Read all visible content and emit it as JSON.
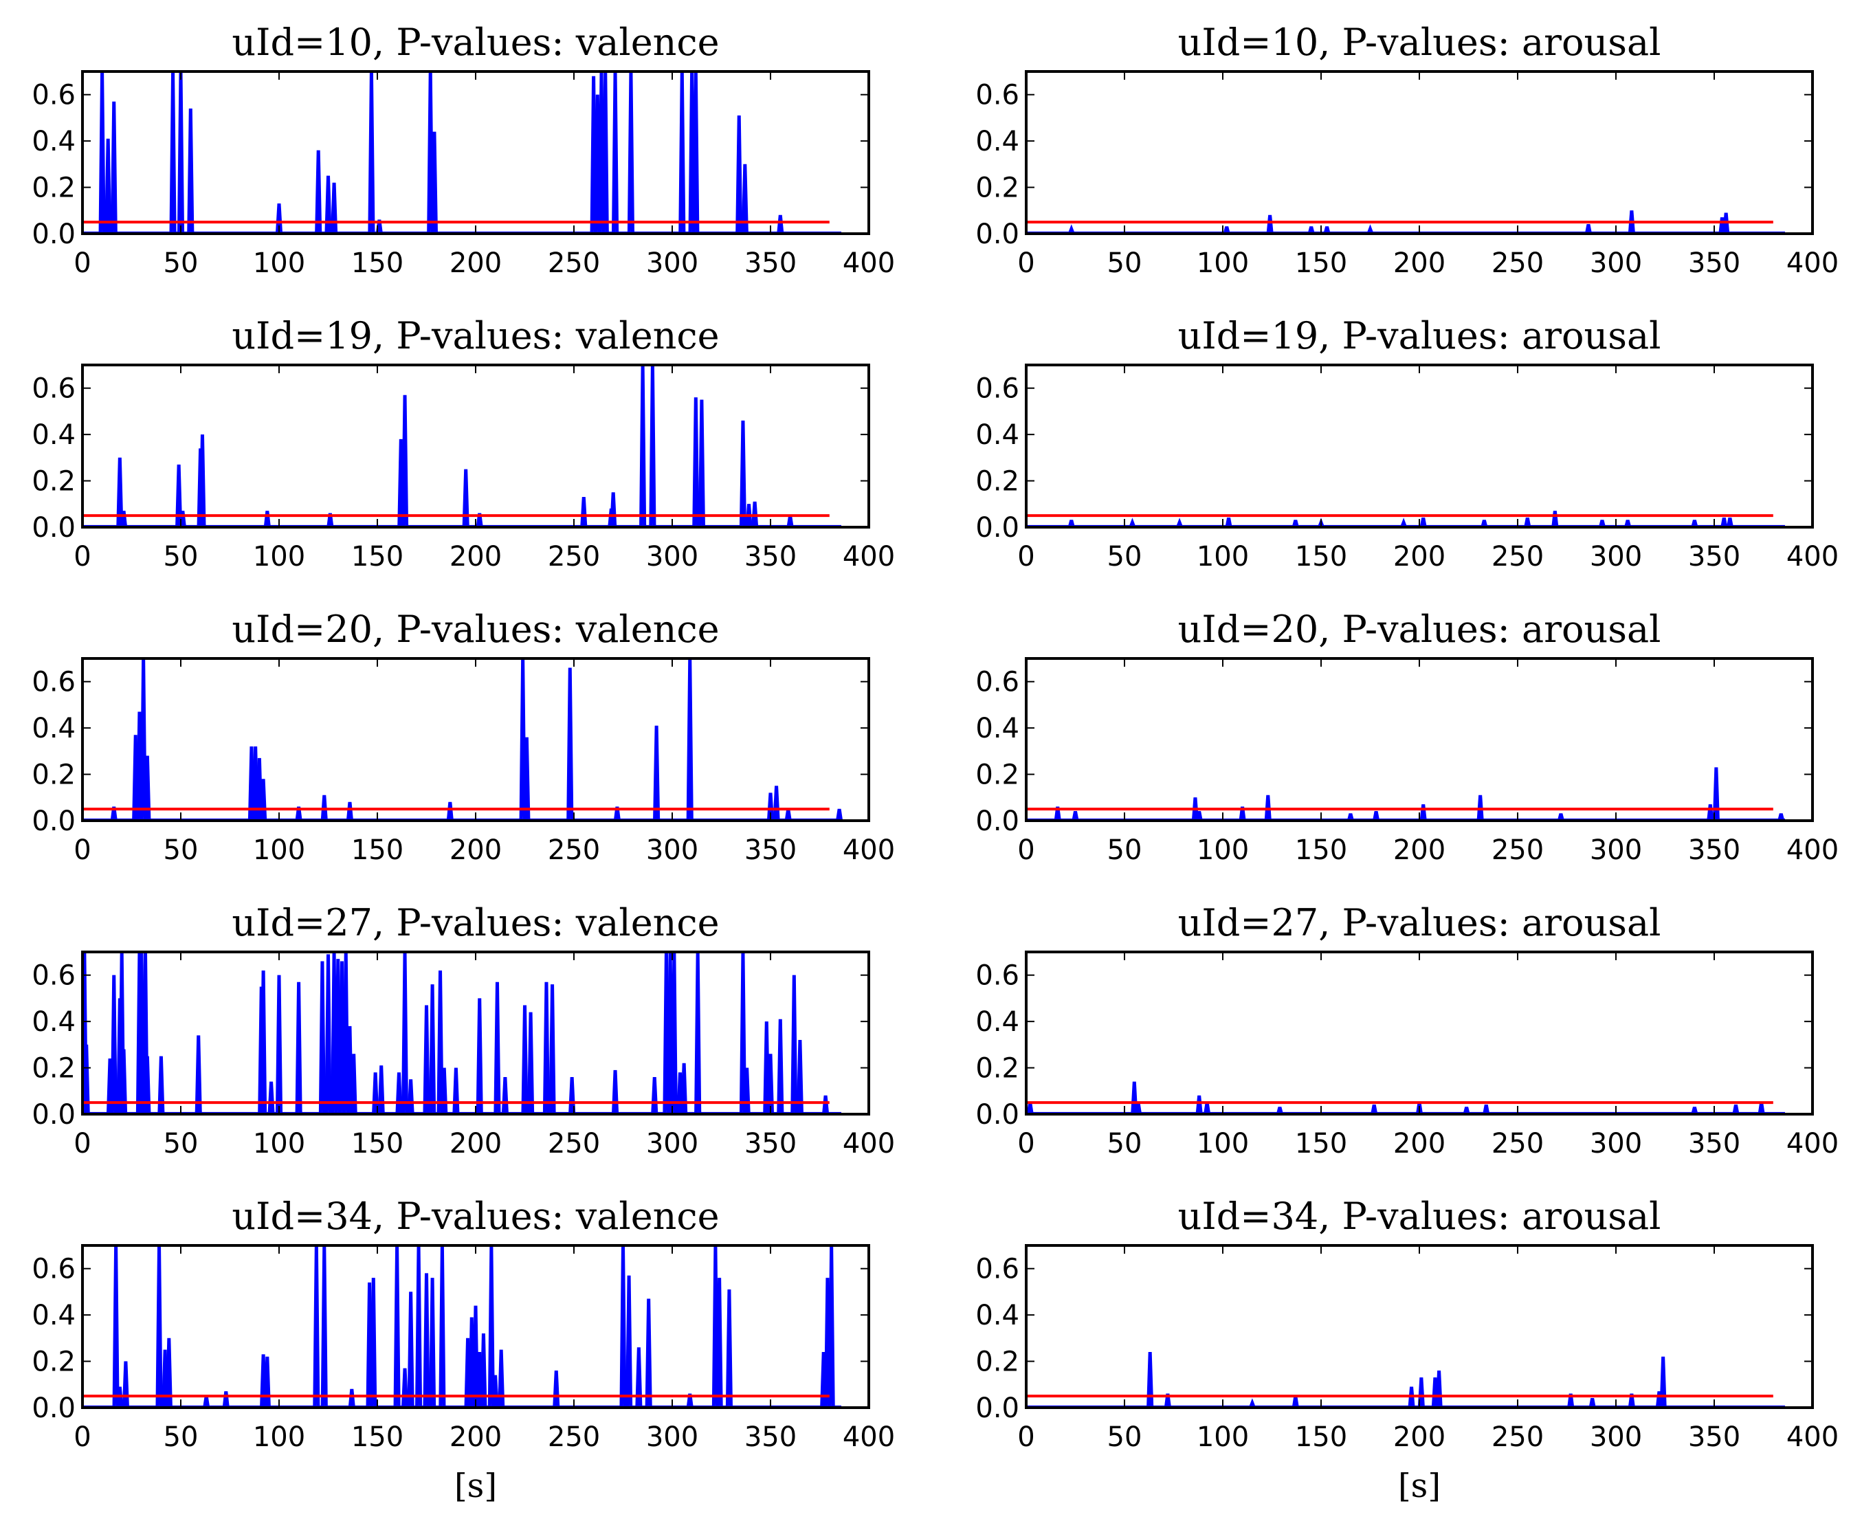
{
  "colors": {
    "pvalue": "#0000ff",
    "threshold": "#ff0000",
    "axes": "#000000"
  },
  "figure": {
    "bottom_labels": [
      "[s]",
      "[s]"
    ]
  },
  "chart_data": [
    {
      "type": "line",
      "title": "uId=10, P-values: valence",
      "xlabel": "",
      "ylabel": "",
      "xlim": [
        0,
        400
      ],
      "ylim": [
        0,
        0.7
      ],
      "xticks": [
        "0",
        "50",
        "100",
        "150",
        "200",
        "250",
        "300",
        "350",
        "400"
      ],
      "yticks": [
        "0.0",
        "0.2",
        "0.4",
        "0.6"
      ],
      "threshold": 0.05,
      "x_end": 380,
      "spikes": [
        [
          10,
          0.7
        ],
        [
          13,
          0.41
        ],
        [
          16,
          0.57
        ],
        [
          46,
          0.7
        ],
        [
          50,
          0.7
        ],
        [
          55,
          0.54
        ],
        [
          100,
          0.13
        ],
        [
          120,
          0.36
        ],
        [
          125,
          0.25
        ],
        [
          128,
          0.22
        ],
        [
          147,
          0.7
        ],
        [
          151,
          0.06
        ],
        [
          177,
          0.7
        ],
        [
          179,
          0.44
        ],
        [
          260,
          0.68
        ],
        [
          262,
          0.6
        ],
        [
          264,
          0.7
        ],
        [
          266,
          0.7
        ],
        [
          271,
          0.7
        ],
        [
          279,
          0.7
        ],
        [
          305,
          0.7
        ],
        [
          310,
          0.7
        ],
        [
          312,
          0.7
        ],
        [
          334,
          0.51
        ],
        [
          337,
          0.3
        ],
        [
          355,
          0.08
        ]
      ]
    },
    {
      "type": "line",
      "title": "uId=10, P-values: arousal",
      "xlabel": "",
      "ylabel": "",
      "xlim": [
        0,
        400
      ],
      "ylim": [
        0,
        0.7
      ],
      "xticks": [
        "0",
        "50",
        "100",
        "150",
        "200",
        "250",
        "300",
        "350",
        "400"
      ],
      "yticks": [
        "0.0",
        "0.2",
        "0.4",
        "0.6"
      ],
      "threshold": 0.05,
      "x_end": 380,
      "spikes": [
        [
          23,
          0.02
        ],
        [
          102,
          0.03
        ],
        [
          124,
          0.08
        ],
        [
          145,
          0.03
        ],
        [
          153,
          0.03
        ],
        [
          175,
          0.02
        ],
        [
          286,
          0.04
        ],
        [
          308,
          0.1
        ],
        [
          354,
          0.07
        ],
        [
          356,
          0.09
        ]
      ]
    },
    {
      "type": "line",
      "title": "uId=19, P-values: valence",
      "xlabel": "",
      "ylabel": "",
      "xlim": [
        0,
        400
      ],
      "ylim": [
        0,
        0.7
      ],
      "xticks": [
        "0",
        "50",
        "100",
        "150",
        "200",
        "250",
        "300",
        "350",
        "400"
      ],
      "yticks": [
        "0.0",
        "0.2",
        "0.4",
        "0.6"
      ],
      "threshold": 0.05,
      "x_end": 380,
      "spikes": [
        [
          19,
          0.3
        ],
        [
          21,
          0.07
        ],
        [
          49,
          0.27
        ],
        [
          51,
          0.07
        ],
        [
          60,
          0.34
        ],
        [
          61,
          0.4
        ],
        [
          94,
          0.07
        ],
        [
          126,
          0.06
        ],
        [
          162,
          0.38
        ],
        [
          164,
          0.57
        ],
        [
          195,
          0.25
        ],
        [
          202,
          0.06
        ],
        [
          255,
          0.13
        ],
        [
          269,
          0.08
        ],
        [
          270,
          0.15
        ],
        [
          285,
          0.7
        ],
        [
          290,
          0.7
        ],
        [
          312,
          0.56
        ],
        [
          315,
          0.55
        ],
        [
          336,
          0.46
        ],
        [
          339,
          0.1
        ],
        [
          342,
          0.11
        ],
        [
          360,
          0.05
        ]
      ]
    },
    {
      "type": "line",
      "title": "uId=19, P-values: arousal",
      "xlabel": "",
      "ylabel": "",
      "xlim": [
        0,
        400
      ],
      "ylim": [
        0,
        0.7
      ],
      "xticks": [
        "0",
        "50",
        "100",
        "150",
        "200",
        "250",
        "300",
        "350",
        "400"
      ],
      "yticks": [
        "0.0",
        "0.2",
        "0.4",
        "0.6"
      ],
      "threshold": 0.05,
      "x_end": 380,
      "spikes": [
        [
          23,
          0.03
        ],
        [
          54,
          0.02
        ],
        [
          78,
          0.02
        ],
        [
          103,
          0.04
        ],
        [
          137,
          0.03
        ],
        [
          150,
          0.02
        ],
        [
          192,
          0.02
        ],
        [
          202,
          0.04
        ],
        [
          233,
          0.03
        ],
        [
          255,
          0.04
        ],
        [
          269,
          0.07
        ],
        [
          293,
          0.03
        ],
        [
          306,
          0.03
        ],
        [
          340,
          0.03
        ],
        [
          355,
          0.04
        ],
        [
          358,
          0.04
        ]
      ]
    },
    {
      "type": "line",
      "title": "uId=20, P-values: valence",
      "xlabel": "",
      "ylabel": "",
      "xlim": [
        0,
        400
      ],
      "ylim": [
        0,
        0.7
      ],
      "xticks": [
        "0",
        "50",
        "100",
        "150",
        "200",
        "250",
        "300",
        "350",
        "400"
      ],
      "yticks": [
        "0.0",
        "0.2",
        "0.4",
        "0.6"
      ],
      "threshold": 0.05,
      "x_end": 380,
      "spikes": [
        [
          16,
          0.06
        ],
        [
          27,
          0.37
        ],
        [
          29,
          0.47
        ],
        [
          31,
          0.7
        ],
        [
          33,
          0.28
        ],
        [
          86,
          0.32
        ],
        [
          88,
          0.32
        ],
        [
          90,
          0.27
        ],
        [
          92,
          0.18
        ],
        [
          110,
          0.06
        ],
        [
          123,
          0.11
        ],
        [
          136,
          0.08
        ],
        [
          187,
          0.08
        ],
        [
          224,
          0.7
        ],
        [
          226,
          0.36
        ],
        [
          248,
          0.66
        ],
        [
          272,
          0.06
        ],
        [
          292,
          0.41
        ],
        [
          309,
          0.7
        ],
        [
          350,
          0.12
        ],
        [
          353,
          0.15
        ],
        [
          359,
          0.05
        ],
        [
          385,
          0.05
        ]
      ]
    },
    {
      "type": "line",
      "title": "uId=20, P-values: arousal",
      "xlabel": "",
      "ylabel": "",
      "xlim": [
        0,
        400
      ],
      "ylim": [
        0,
        0.7
      ],
      "xticks": [
        "0",
        "50",
        "100",
        "150",
        "200",
        "250",
        "300",
        "350",
        "400"
      ],
      "yticks": [
        "0.0",
        "0.2",
        "0.4",
        "0.6"
      ],
      "threshold": 0.05,
      "x_end": 380,
      "spikes": [
        [
          16,
          0.06
        ],
        [
          25,
          0.04
        ],
        [
          86,
          0.1
        ],
        [
          88,
          0.04
        ],
        [
          110,
          0.06
        ],
        [
          123,
          0.11
        ],
        [
          165,
          0.03
        ],
        [
          178,
          0.04
        ],
        [
          202,
          0.07
        ],
        [
          231,
          0.11
        ],
        [
          272,
          0.03
        ],
        [
          348,
          0.07
        ],
        [
          351,
          0.23
        ],
        [
          384,
          0.03
        ]
      ]
    },
    {
      "type": "line",
      "title": "uId=27, P-values: valence",
      "xlabel": "",
      "ylabel": "",
      "xlim": [
        0,
        400
      ],
      "ylim": [
        0,
        0.7
      ],
      "xticks": [
        "0",
        "50",
        "100",
        "150",
        "200",
        "250",
        "300",
        "350",
        "400"
      ],
      "yticks": [
        "0.0",
        "0.2",
        "0.4",
        "0.6"
      ],
      "threshold": 0.05,
      "x_end": 380,
      "spikes": [
        [
          1,
          0.7
        ],
        [
          2,
          0.3
        ],
        [
          14,
          0.24
        ],
        [
          16,
          0.6
        ],
        [
          19,
          0.5
        ],
        [
          20,
          0.7
        ],
        [
          21,
          0.28
        ],
        [
          29,
          0.7
        ],
        [
          30,
          0.7
        ],
        [
          32,
          0.7
        ],
        [
          33,
          0.25
        ],
        [
          40,
          0.25
        ],
        [
          59,
          0.34
        ],
        [
          91,
          0.55
        ],
        [
          92,
          0.62
        ],
        [
          96,
          0.14
        ],
        [
          100,
          0.6
        ],
        [
          110,
          0.57
        ],
        [
          122,
          0.66
        ],
        [
          125,
          0.69
        ],
        [
          128,
          0.7
        ],
        [
          130,
          0.67
        ],
        [
          132,
          0.66
        ],
        [
          134,
          0.7
        ],
        [
          136,
          0.38
        ],
        [
          138,
          0.26
        ],
        [
          149,
          0.18
        ],
        [
          152,
          0.21
        ],
        [
          161,
          0.18
        ],
        [
          164,
          0.7
        ],
        [
          167,
          0.15
        ],
        [
          175,
          0.47
        ],
        [
          178,
          0.56
        ],
        [
          182,
          0.62
        ],
        [
          184,
          0.2
        ],
        [
          190,
          0.2
        ],
        [
          202,
          0.5
        ],
        [
          211,
          0.57
        ],
        [
          215,
          0.16
        ],
        [
          225,
          0.47
        ],
        [
          228,
          0.44
        ],
        [
          236,
          0.57
        ],
        [
          239,
          0.56
        ],
        [
          249,
          0.16
        ],
        [
          271,
          0.19
        ],
        [
          291,
          0.16
        ],
        [
          297,
          0.7
        ],
        [
          299,
          0.7
        ],
        [
          301,
          0.7
        ],
        [
          304,
          0.18
        ],
        [
          306,
          0.22
        ],
        [
          313,
          0.7
        ],
        [
          336,
          0.7
        ],
        [
          338,
          0.2
        ],
        [
          348,
          0.4
        ],
        [
          350,
          0.26
        ],
        [
          355,
          0.41
        ],
        [
          362,
          0.6
        ],
        [
          365,
          0.32
        ],
        [
          378,
          0.08
        ]
      ]
    },
    {
      "type": "line",
      "title": "uId=27, P-values: arousal",
      "xlabel": "",
      "ylabel": "",
      "xlim": [
        0,
        400
      ],
      "ylim": [
        0,
        0.7
      ],
      "xticks": [
        "0",
        "50",
        "100",
        "150",
        "200",
        "250",
        "300",
        "350",
        "400"
      ],
      "yticks": [
        "0.0",
        "0.2",
        "0.4",
        "0.6"
      ],
      "threshold": 0.05,
      "x_end": 380,
      "spikes": [
        [
          2,
          0.05
        ],
        [
          55,
          0.14
        ],
        [
          57,
          0.05
        ],
        [
          88,
          0.08
        ],
        [
          92,
          0.05
        ],
        [
          129,
          0.03
        ],
        [
          177,
          0.04
        ],
        [
          200,
          0.05
        ],
        [
          224,
          0.03
        ],
        [
          234,
          0.04
        ],
        [
          340,
          0.03
        ],
        [
          361,
          0.04
        ],
        [
          374,
          0.05
        ]
      ]
    },
    {
      "type": "line",
      "title": "uId=34, P-values: valence",
      "xlabel": "",
      "ylabel": "",
      "xlim": [
        0,
        400
      ],
      "ylim": [
        0,
        0.7
      ],
      "xticks": [
        "0",
        "50",
        "100",
        "150",
        "200",
        "250",
        "300",
        "350",
        "400"
      ],
      "yticks": [
        "0.0",
        "0.2",
        "0.4",
        "0.6"
      ],
      "threshold": 0.05,
      "x_end": 380,
      "spikes": [
        [
          17,
          0.7
        ],
        [
          19,
          0.09
        ],
        [
          22,
          0.2
        ],
        [
          39,
          0.7
        ],
        [
          42,
          0.25
        ],
        [
          44,
          0.3
        ],
        [
          63,
          0.05
        ],
        [
          73,
          0.07
        ],
        [
          92,
          0.23
        ],
        [
          94,
          0.22
        ],
        [
          119,
          0.7
        ],
        [
          123,
          0.7
        ],
        [
          137,
          0.08
        ],
        [
          146,
          0.54
        ],
        [
          148,
          0.56
        ],
        [
          160,
          0.7
        ],
        [
          164,
          0.17
        ],
        [
          167,
          0.5
        ],
        [
          171,
          0.7
        ],
        [
          175,
          0.58
        ],
        [
          178,
          0.56
        ],
        [
          183,
          0.7
        ],
        [
          196,
          0.3
        ],
        [
          198,
          0.39
        ],
        [
          200,
          0.44
        ],
        [
          202,
          0.24
        ],
        [
          204,
          0.32
        ],
        [
          208,
          0.7
        ],
        [
          210,
          0.14
        ],
        [
          213,
          0.25
        ],
        [
          241,
          0.16
        ],
        [
          275,
          0.7
        ],
        [
          278,
          0.57
        ],
        [
          283,
          0.26
        ],
        [
          288,
          0.47
        ],
        [
          309,
          0.06
        ],
        [
          322,
          0.7
        ],
        [
          324,
          0.56
        ],
        [
          329,
          0.51
        ],
        [
          377,
          0.24
        ],
        [
          379,
          0.56
        ],
        [
          381,
          0.7
        ]
      ]
    },
    {
      "type": "line",
      "title": "uId=34, P-values: arousal",
      "xlabel": "",
      "ylabel": "",
      "xlim": [
        0,
        400
      ],
      "ylim": [
        0,
        0.7
      ],
      "xticks": [
        "0",
        "50",
        "100",
        "150",
        "200",
        "250",
        "300",
        "350",
        "400"
      ],
      "yticks": [
        "0.0",
        "0.2",
        "0.4",
        "0.6"
      ],
      "threshold": 0.05,
      "x_end": 380,
      "spikes": [
        [
          63,
          0.24
        ],
        [
          72,
          0.06
        ],
        [
          115,
          0.02
        ],
        [
          137,
          0.05
        ],
        [
          196,
          0.09
        ],
        [
          201,
          0.13
        ],
        [
          208,
          0.13
        ],
        [
          210,
          0.16
        ],
        [
          277,
          0.06
        ],
        [
          288,
          0.04
        ],
        [
          308,
          0.06
        ],
        [
          322,
          0.07
        ],
        [
          324,
          0.22
        ]
      ]
    }
  ]
}
